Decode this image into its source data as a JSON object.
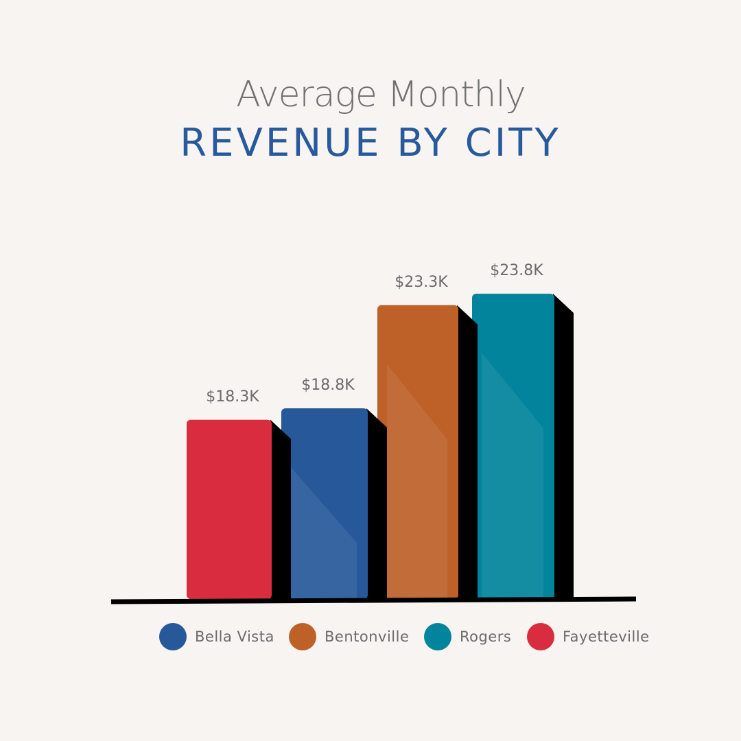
{
  "title": {
    "line1": "Average Monthly",
    "line2": "REVENUE BY CITY"
  },
  "chart_data": {
    "type": "bar",
    "categories": [
      "Fayetteville",
      "Bella Vista",
      "Bentonville",
      "Rogers"
    ],
    "values": [
      18.3,
      18.8,
      23.3,
      23.8
    ],
    "value_labels": [
      "$18.3K",
      "$18.8K",
      "$23.3K",
      "$23.8K"
    ],
    "colors": [
      "#d92d3f",
      "#27589a",
      "#bd6129",
      "#01849c"
    ],
    "legend_position": "bottom",
    "grid": false
  },
  "legend": [
    {
      "label": "Bella Vista",
      "color": "#27589a"
    },
    {
      "label": "Bentonville",
      "color": "#bd6129"
    },
    {
      "label": "Rogers",
      "color": "#01849c"
    },
    {
      "label": "Fayetteville",
      "color": "#d92d3f"
    }
  ]
}
